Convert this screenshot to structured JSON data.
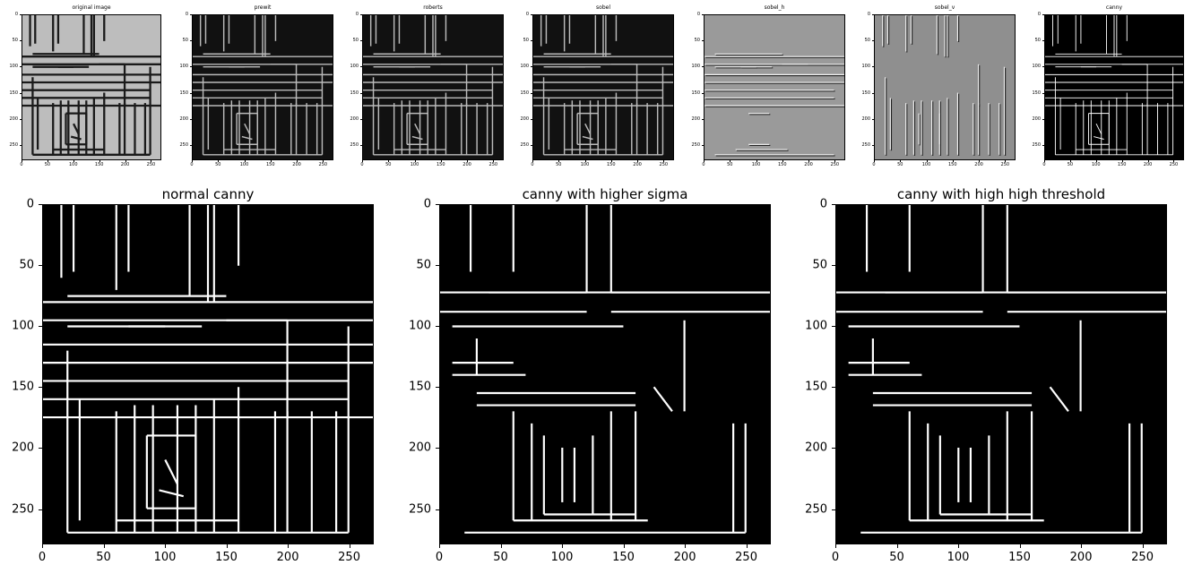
{
  "figure": {
    "top_row": [
      {
        "id": "original",
        "title": "original image",
        "style": "gray"
      },
      {
        "id": "prewit",
        "title": "prewit",
        "style": "edge"
      },
      {
        "id": "roberts",
        "title": "roberts",
        "style": "edge"
      },
      {
        "id": "sobel",
        "title": "sobel",
        "style": "edge"
      },
      {
        "id": "sobel_h",
        "title": "sobel_h",
        "style": "relief_h"
      },
      {
        "id": "sobel_v",
        "title": "sobel_v",
        "style": "relief_v"
      },
      {
        "id": "canny",
        "title": "canny",
        "style": "binary"
      }
    ],
    "bottom_row": [
      {
        "id": "normal-canny",
        "title": "normal canny",
        "style": "binary"
      },
      {
        "id": "canny-higher-sigma",
        "title": "canny with higher sigma",
        "style": "binary_smooth"
      },
      {
        "id": "canny-high-threshold",
        "title": "canny with high high threshold",
        "style": "binary_smooth"
      }
    ],
    "axis": {
      "x_ticks": [
        "0",
        "50",
        "100",
        "150",
        "200",
        "250"
      ],
      "y_ticks": [
        "0",
        "50",
        "100",
        "150",
        "200",
        "250"
      ],
      "x_tick_values": [
        0,
        50,
        100,
        150,
        200,
        250
      ],
      "y_tick_values": [
        0,
        50,
        100,
        150,
        200,
        250
      ],
      "x_range": [
        0,
        270
      ],
      "y_range": [
        0,
        279
      ]
    },
    "colors": {
      "background": "#000000",
      "edge": "#ffffff",
      "gray_light": "#c8c8c8",
      "gray_mid": "#808080"
    }
  }
}
